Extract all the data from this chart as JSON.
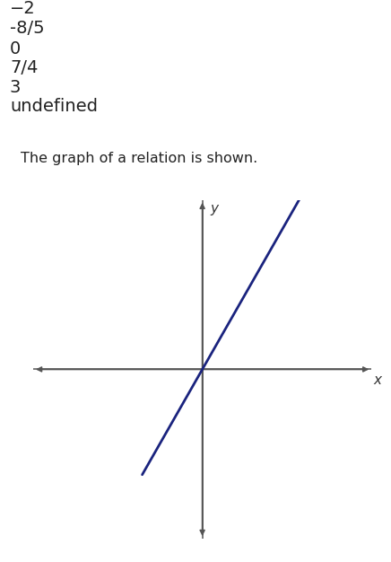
{
  "options": [
    "−2",
    "-8/5",
    "0",
    "7/4",
    "3",
    "undefined"
  ],
  "title_text": "The graph of a relation is shown.",
  "slope": 1.75,
  "intercept": 0,
  "line_color": "#1a237e",
  "line_width": 2.0,
  "x_range": [
    -4.5,
    4.5
  ],
  "y_range": [
    -4.5,
    4.5
  ],
  "x_plot_min": -1.6,
  "x_plot_max": 3.2,
  "header_color": "#555555",
  "options_fontsize": 14,
  "title_fontsize": 11.5,
  "axis_label_fontsize": 11,
  "axis_color": "#555555",
  "bg_color": "#ffffff"
}
